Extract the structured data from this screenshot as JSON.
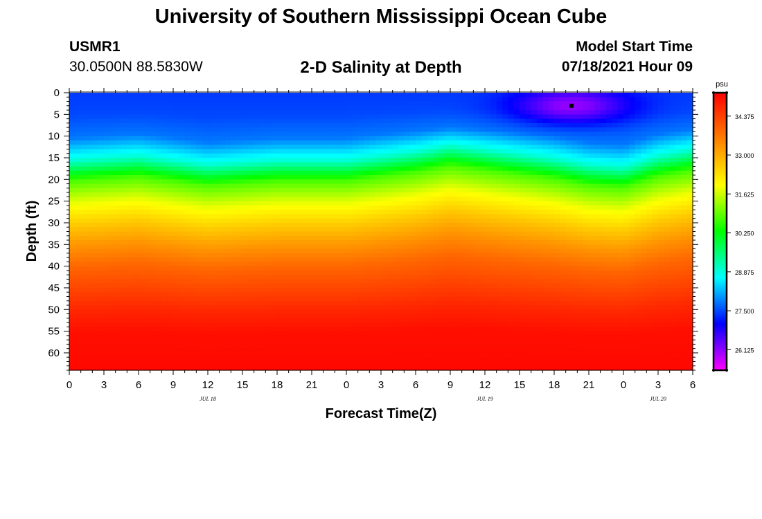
{
  "header": {
    "title": "University of Southern Mississippi Ocean Cube",
    "station_id": "USMR1",
    "station_coords": "30.0500N  88.5830W",
    "plot_title": "2-D Salinity at Depth",
    "model_start_label": "Model Start Time",
    "model_start_value": "07/18/2021 Hour 09"
  },
  "footer": {
    "title": "University of Southern Mississippi Ocean Cube"
  },
  "colors": {
    "scale": [
      "#ff00ff",
      "#7f00ff",
      "#0000ff",
      "#007fff",
      "#00ffff",
      "#00ff7f",
      "#00ff00",
      "#7fff00",
      "#ffff00",
      "#ffbf00",
      "#ff7f00",
      "#ff3f00",
      "#ff0000"
    ]
  },
  "chart_data": {
    "type": "heatmap",
    "title": "2-D Salinity at Depth",
    "xlabel": "Forecast Time(Z)",
    "ylabel": "Depth (ft)",
    "x_ticks": [
      "0",
      "3",
      "6",
      "9",
      "12",
      "15",
      "18",
      "21",
      "0",
      "3",
      "6",
      "9",
      "12",
      "15",
      "18",
      "21",
      "0",
      "3",
      "6"
    ],
    "x_range_hours": [
      0,
      54
    ],
    "date_labels": [
      {
        "hour": 12,
        "label": "JUL 18"
      },
      {
        "hour": 36,
        "label": "JUL 19"
      },
      {
        "hour": 51,
        "label": "JUL 20"
      }
    ],
    "y_ticks": [
      0,
      5,
      10,
      15,
      20,
      25,
      30,
      35,
      40,
      45,
      50,
      55,
      60
    ],
    "y_range_ft": [
      0,
      64
    ],
    "colorbar": {
      "unit": "psu",
      "min": 25.4,
      "max": 35.2,
      "ticks": [
        "34.375",
        "33.000",
        "31.625",
        "30.250",
        "28.875",
        "27.500",
        "26.125"
      ]
    },
    "depth_profile": [
      {
        "depth": 0,
        "salinity": 27.4
      },
      {
        "depth": 5,
        "salinity": 27.5
      },
      {
        "depth": 10,
        "salinity": 27.8
      },
      {
        "depth": 15,
        "salinity": 28.9
      },
      {
        "depth": 20,
        "salinity": 30.8
      },
      {
        "depth": 25,
        "salinity": 31.8
      },
      {
        "depth": 30,
        "salinity": 32.6
      },
      {
        "depth": 35,
        "salinity": 33.3
      },
      {
        "depth": 40,
        "salinity": 33.9
      },
      {
        "depth": 45,
        "salinity": 34.3
      },
      {
        "depth": 50,
        "salinity": 34.7
      },
      {
        "depth": 55,
        "salinity": 35.0
      },
      {
        "depth": 64,
        "salinity": 35.1
      }
    ],
    "layer_shift_by_hour": [
      {
        "hour": 0,
        "shift": 0.5
      },
      {
        "hour": 6,
        "shift": -0.5
      },
      {
        "hour": 12,
        "shift": 1.5
      },
      {
        "hour": 18,
        "shift": 0.5
      },
      {
        "hour": 24,
        "shift": 0.5
      },
      {
        "hour": 30,
        "shift": -1.5
      },
      {
        "hour": 33,
        "shift": -3.0
      },
      {
        "hour": 36,
        "shift": -2.0
      },
      {
        "hour": 39,
        "shift": -1.0
      },
      {
        "hour": 42,
        "shift": 0.0
      },
      {
        "hour": 45,
        "shift": 1.5
      },
      {
        "hour": 48,
        "shift": 2.0
      },
      {
        "hour": 51,
        "shift": -0.5
      },
      {
        "hour": 54,
        "shift": -2.0
      }
    ],
    "low_salinity_patch": {
      "hour": 43.5,
      "depth": 3,
      "salinity": 26.0,
      "hour_spread": 5,
      "depth_spread": 4
    },
    "marker": {
      "hour": 43.5,
      "depth": 3
    }
  }
}
